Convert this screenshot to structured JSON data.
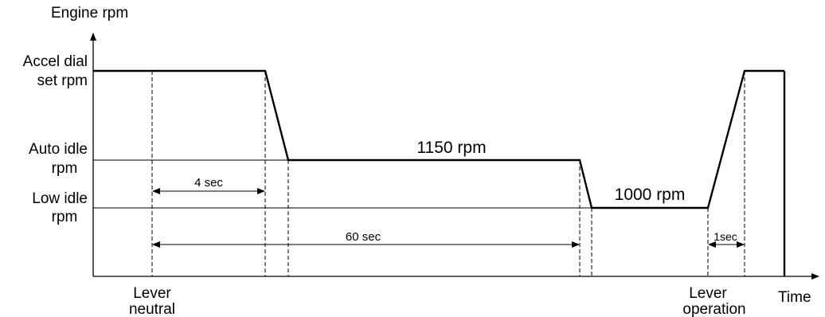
{
  "chart_data": {
    "type": "line",
    "title": "",
    "ylabel": "Engine rpm",
    "xlabel": "Time",
    "y_levels": [
      {
        "key": "accel",
        "label_line1": "Accel dial",
        "label_line2": "set rpm"
      },
      {
        "key": "auto",
        "label_line1": "Auto idle",
        "label_line2": "rpm"
      },
      {
        "key": "low",
        "label_line1": "Low idle",
        "label_line2": "rpm"
      }
    ],
    "x_events": [
      {
        "key": "lever_neutral",
        "label_line1": "Lever",
        "label_line2": "neutral"
      },
      {
        "key": "lever_operation",
        "label_line1": "Lever",
        "label_line2": "operation"
      }
    ],
    "series": [
      {
        "points": [
          {
            "t": 0,
            "level": "accel"
          },
          {
            "t": 4,
            "level": "accel"
          },
          {
            "t": 4.8,
            "level": "auto"
          },
          {
            "t": 60,
            "level": "auto"
          },
          {
            "t": 60.5,
            "level": "low"
          },
          {
            "t": 64.3,
            "level": "low"
          },
          {
            "t": 65.3,
            "level": "accel"
          },
          {
            "t": 66.5,
            "level": "accel"
          }
        ]
      }
    ],
    "annotations": {
      "auto_idle_value": "1150 rpm",
      "low_idle_value": "1000 rpm",
      "interval_4": "4 sec",
      "interval_60": "60 sec",
      "interval_1": "1sec"
    },
    "grid": false,
    "legend": "none"
  }
}
